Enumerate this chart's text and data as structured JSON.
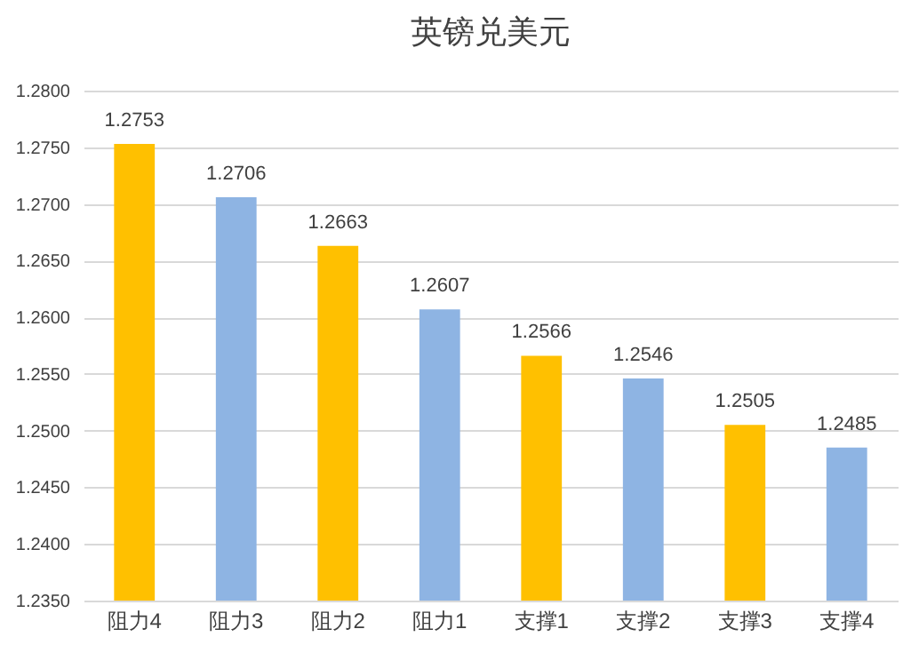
{
  "chart_data": {
    "type": "bar",
    "title": "英镑兑美元",
    "categories": [
      "阻力4",
      "阻力3",
      "阻力2",
      "阻力1",
      "支撑1",
      "支撑2",
      "支撑3",
      "支撑4"
    ],
    "values": [
      1.2753,
      1.2706,
      1.2663,
      1.2607,
      1.2566,
      1.2546,
      1.2505,
      1.2485
    ],
    "value_labels": [
      "1.2753",
      "1.2706",
      "1.2663",
      "1.2607",
      "1.2566",
      "1.2546",
      "1.2505",
      "1.2485"
    ],
    "colors": [
      "#ffc000",
      "#8eb4e3",
      "#ffc000",
      "#8eb4e3",
      "#ffc000",
      "#8eb4e3",
      "#ffc000",
      "#8eb4e3"
    ],
    "ylim": [
      1.235,
      1.28
    ],
    "yticks": [
      {
        "value": 1.235,
        "label": "1.2350"
      },
      {
        "value": 1.24,
        "label": "1.2400"
      },
      {
        "value": 1.245,
        "label": "1.2450"
      },
      {
        "value": 1.25,
        "label": "1.2500"
      },
      {
        "value": 1.255,
        "label": "1.2550"
      },
      {
        "value": 1.26,
        "label": "1.2600"
      },
      {
        "value": 1.265,
        "label": "1.2650"
      },
      {
        "value": 1.27,
        "label": "1.2700"
      },
      {
        "value": 1.275,
        "label": "1.2750"
      },
      {
        "value": 1.28,
        "label": "1.2800"
      }
    ],
    "grid": "y"
  }
}
